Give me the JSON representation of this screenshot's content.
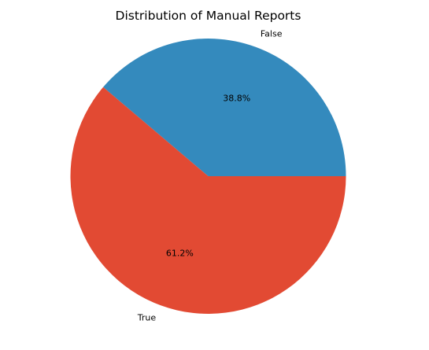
{
  "chart_data": {
    "type": "pie",
    "title": "Distribution of Manual Reports",
    "labels": [
      "False",
      "True"
    ],
    "values": [
      38.8,
      61.2
    ],
    "percent_labels": [
      "38.8%",
      "61.2%"
    ],
    "colors": [
      "#348abd",
      "#e24a33"
    ],
    "start_angle_deg": 0,
    "direction": "counterclockwise",
    "legend": "none"
  }
}
